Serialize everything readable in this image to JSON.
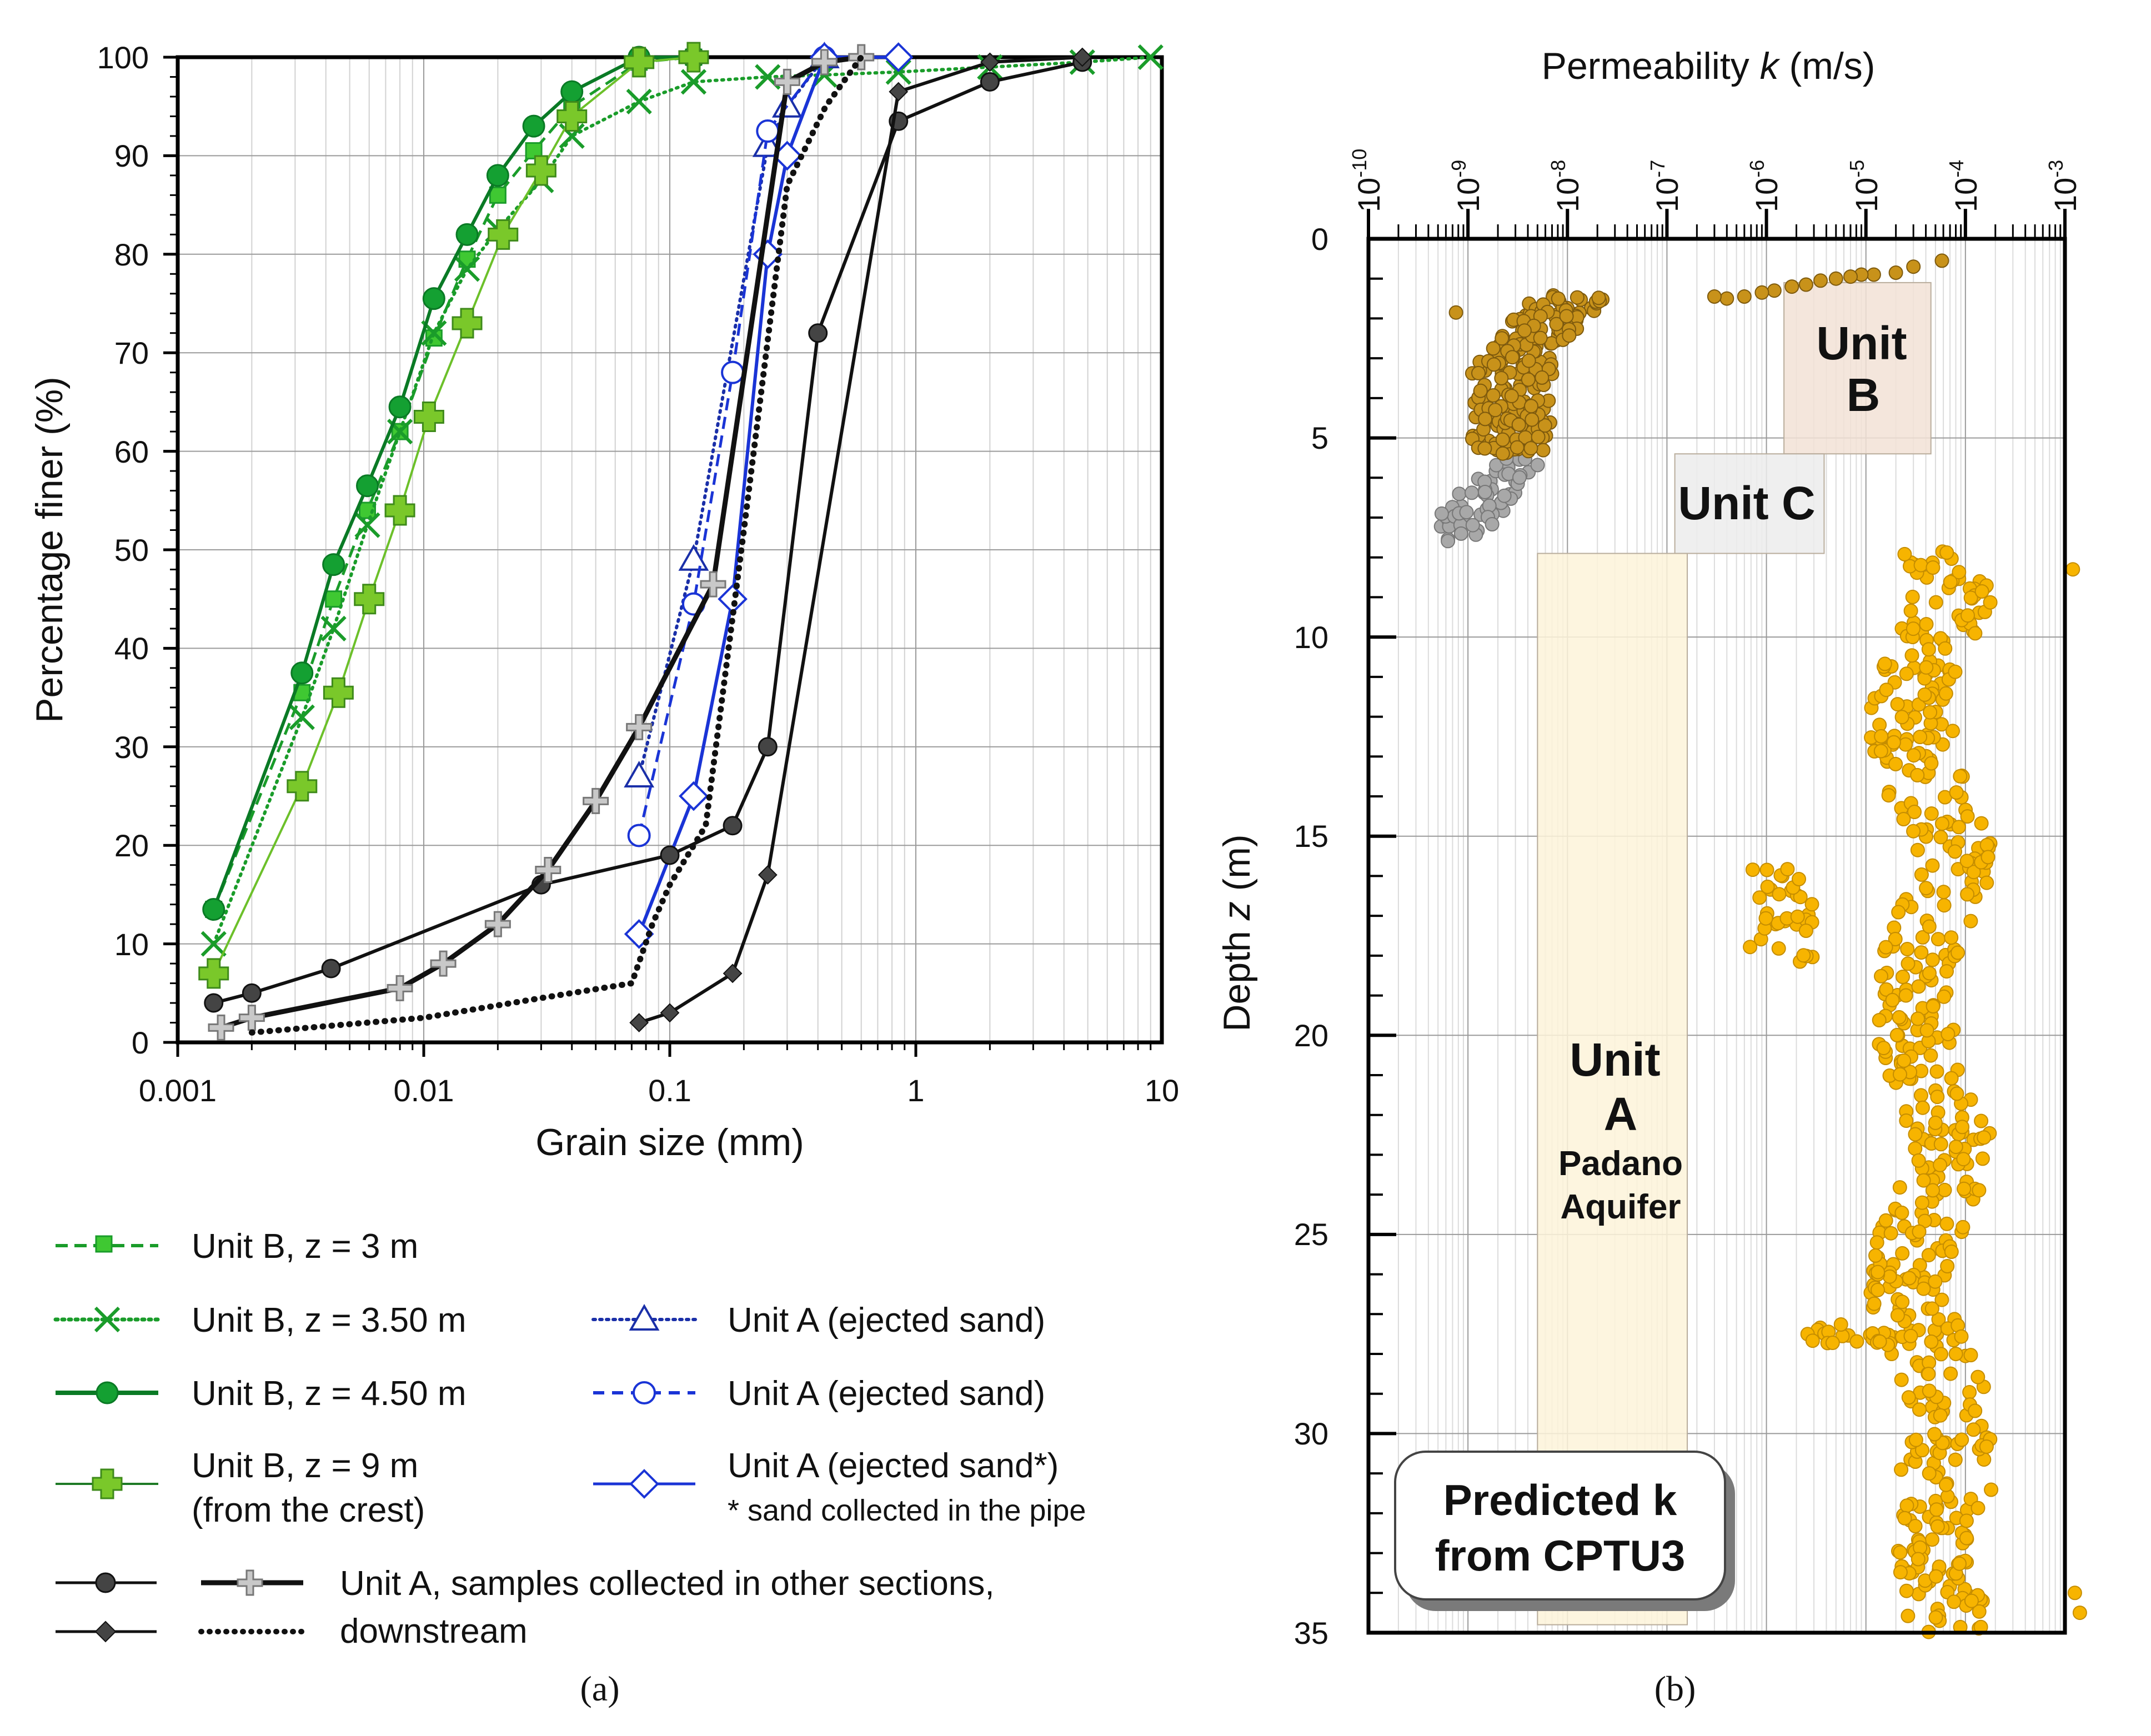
{
  "chart_data": [
    {
      "id": "a",
      "type": "line",
      "panel_label": "(a)",
      "xlabel": "Grain size (mm)",
      "ylabel": "Percentage finer (%)",
      "xscale": "log",
      "xlim": [
        0.001,
        10
      ],
      "ylim": [
        0,
        100
      ],
      "xticks": [
        "0.001",
        "0.01",
        "0.1",
        "1",
        "10"
      ],
      "yticks": [
        "0",
        "10",
        "20",
        "30",
        "40",
        "50",
        "60",
        "70",
        "80",
        "90",
        "100"
      ],
      "grid": true,
      "series": [
        {
          "name": "Unit B, z = 3 m",
          "style": "dashed",
          "marker": "square",
          "color": "#1a9c2a",
          "x": [
            0.0014,
            0.0032,
            0.0043,
            0.0059,
            0.008,
            0.011,
            0.015,
            0.02,
            0.028,
            0.04,
            0.075,
            0.125
          ],
          "y": [
            13.5,
            35.5,
            45,
            54,
            62,
            71.5,
            79.5,
            86,
            90.5,
            95,
            99.5,
            100
          ]
        },
        {
          "name": "Unit B, z = 3.50 m",
          "style": "dotted",
          "marker": "x",
          "color": "#1a9c2a",
          "x": [
            0.0014,
            0.0032,
            0.0043,
            0.0059,
            0.008,
            0.011,
            0.015,
            0.02,
            0.03,
            0.04,
            0.075,
            0.125,
            0.25,
            0.425,
            0.85,
            2,
            4.75,
            9
          ],
          "y": [
            10,
            33,
            42,
            52.5,
            62,
            72,
            78.5,
            82.5,
            87.5,
            92,
            95.5,
            97.5,
            98,
            98.2,
            98.5,
            99,
            99.5,
            100
          ]
        },
        {
          "name": "Unit B, z = 4.50 m",
          "style": "solid",
          "marker": "circle",
          "color": "#0a7a25",
          "x": [
            0.0014,
            0.0032,
            0.0043,
            0.0059,
            0.008,
            0.011,
            0.015,
            0.02,
            0.028,
            0.04,
            0.075,
            0.125
          ],
          "y": [
            13.5,
            37.5,
            48.5,
            56.5,
            64.5,
            75.5,
            82,
            88,
            93,
            96.5,
            100,
            100
          ]
        },
        {
          "name": "Unit B, z = 9 m (from the crest)",
          "style": "thin",
          "marker": "plus",
          "color": "#6cc02a",
          "x": [
            0.0014,
            0.0032,
            0.0045,
            0.006,
            0.008,
            0.0105,
            0.015,
            0.021,
            0.03,
            0.04,
            0.075,
            0.125
          ],
          "y": [
            7,
            26,
            35.5,
            45,
            54,
            63.5,
            73,
            82,
            88.5,
            94,
            99.5,
            100
          ]
        },
        {
          "name": "Unit A (ejected sand)",
          "style": "dotted",
          "marker": "triangle",
          "color": "#1a2fa8",
          "x": [
            0.075,
            0.125,
            0.25,
            0.3,
            0.425
          ],
          "y": [
            27,
            49,
            91,
            95,
            100
          ]
        },
        {
          "name": "Unit A (ejected sand)",
          "style": "dashed",
          "marker": "circle-open",
          "color": "#1a34d6",
          "x": [
            0.075,
            0.125,
            0.18,
            0.25,
            0.425
          ],
          "y": [
            21,
            44.5,
            68,
            92.5,
            100
          ]
        },
        {
          "name": "Unit A (ejected sand*)",
          "style": "solid",
          "marker": "diamond",
          "color": "#1a34d6",
          "x": [
            0.075,
            0.125,
            0.18,
            0.25,
            0.3,
            0.425,
            0.85
          ],
          "y": [
            11,
            25,
            45,
            80,
            90,
            100,
            100
          ]
        },
        {
          "name": "Unit A, samples collected in other sections, downstream (circle)",
          "style": "solid",
          "marker": "circle-dark",
          "color": "#111111",
          "x": [
            0.0014,
            0.002,
            0.0042,
            0.03,
            0.1,
            0.18,
            0.25,
            0.4,
            0.85,
            2,
            4.75
          ],
          "y": [
            4,
            5,
            7.5,
            16,
            19,
            22,
            30,
            72,
            93.5,
            97.5,
            99.5
          ]
        },
        {
          "name": "Unit A, samples collected in other sections, downstream (diamond)",
          "style": "solid",
          "marker": "diamond-dark",
          "color": "#111111",
          "x": [
            0.075,
            0.1,
            0.18,
            0.25,
            0.85,
            2,
            4.75
          ],
          "y": [
            2,
            3,
            7,
            17,
            96.5,
            99.5,
            100
          ]
        },
        {
          "name": "Unit A, samples collected in other sections, downstream (plus)",
          "style": "thick",
          "marker": "plus-gray",
          "color": "#111111",
          "x": [
            0.0015,
            0.002,
            0.008,
            0.012,
            0.02,
            0.032,
            0.05,
            0.075,
            0.15,
            0.3,
            0.425,
            0.6
          ],
          "y": [
            1.5,
            2.5,
            5.5,
            8,
            12,
            17.5,
            24.5,
            32,
            46.5,
            97.5,
            99.5,
            100
          ]
        },
        {
          "name": "Unit A, samples collected in other sections, downstream (dotted)",
          "style": "heavy-dotted",
          "marker": "none",
          "color": "#111111",
          "x": [
            0.002,
            0.01,
            0.03,
            0.07,
            0.085,
            0.1,
            0.14,
            0.2,
            0.3,
            0.43,
            0.6
          ],
          "y": [
            1,
            2.5,
            4.5,
            6,
            12,
            16,
            22,
            52,
            87,
            95,
            100
          ]
        }
      ],
      "legend": {
        "left": [
          {
            "label": "Unit B, z = 3 m"
          },
          {
            "label": "Unit B, z = 3.50 m"
          },
          {
            "label": "Unit B, z = 4.50 m"
          },
          {
            "label": "Unit B, z = 9 m",
            "label2": "(from the crest)"
          }
        ],
        "right": [
          {
            "label": "Unit A (ejected sand)"
          },
          {
            "label": "Unit A (ejected sand)"
          },
          {
            "label": "Unit A (ejected sand*)",
            "note": "* sand collected in the pipe"
          }
        ],
        "bottom": {
          "line1": "Unit A, samples collected in other sections,",
          "line2": "downstream"
        }
      }
    },
    {
      "id": "b",
      "type": "scatter",
      "panel_label": "(b)",
      "title": "Permeability k (m/s)",
      "title_pre": "Permeability ",
      "title_var": "k",
      "title_post": " (m/s)",
      "ylabel_pre": "Depth ",
      "ylabel_var": "z",
      "ylabel_post": " (m)",
      "xscale": "log",
      "xlim": [
        1e-10,
        0.001
      ],
      "ylim": [
        0,
        35
      ],
      "xtick_bases": [
        "10",
        "10",
        "10",
        "10",
        "10",
        "10",
        "10",
        "10"
      ],
      "xtick_exps": [
        "-10",
        "-9",
        "-8",
        "-7",
        "-6",
        "-5",
        "-4",
        "-3"
      ],
      "yticks": [
        "0",
        "5",
        "10",
        "15",
        "20",
        "25",
        "30",
        "35"
      ],
      "grid": true,
      "colors": {
        "unit_b": "#c8921a",
        "unit_c": "#a8a8a8",
        "unit_a": "#f7b400"
      },
      "units": [
        {
          "label": "Unit",
          "label2": "B",
          "xrange": [
            1.5e-06,
            4.5e-05
          ],
          "zrange": [
            1.1,
            5.4
          ],
          "fill": "#f2e2d6"
        },
        {
          "label": "Unit C",
          "xrange": [
            1.2e-07,
            3.8e-06
          ],
          "zrange": [
            5.4,
            7.9
          ],
          "fill": "#ececec"
        },
        {
          "label": "Unit",
          "label2": "A",
          "sub1": "Padano",
          "sub2": "Aquifer",
          "xrange": [
            5e-09,
            1.6e-07
          ],
          "zrange": [
            7.9,
            34.8
          ],
          "fill": "#fdf3d9"
        }
      ],
      "prediction_box": {
        "line1": "Predicted k",
        "line2": "from CPTU3"
      },
      "point_groups": {
        "unit_b_trend": [
          [
            5.8,
            0.55
          ],
          [
            3,
            0.7
          ],
          [
            2,
            0.85
          ],
          [
            1.2,
            0.9
          ],
          [
            0.9,
            0.9
          ],
          [
            0.7,
            0.95
          ],
          [
            0.5,
            1.0
          ],
          [
            0.35,
            1.05
          ],
          [
            0.25,
            1.15
          ],
          [
            0.18,
            1.2
          ],
          [
            0.12,
            1.3
          ],
          [
            0.09,
            1.35
          ],
          [
            0.06,
            1.45
          ],
          [
            0.04,
            1.5
          ],
          [
            0.03,
            1.45
          ]
        ],
        "unit_b_cluster": {
          "logk_range": [
            -9.0,
            -7.6
          ],
          "z_range": [
            1.4,
            5.4
          ],
          "count": 200
        },
        "unit_c_cluster": {
          "logk_range": [
            -9.6,
            -8.2
          ],
          "z_range": [
            5.5,
            7.6
          ],
          "count": 60
        },
        "unit_a_main": {
          "logk_range": [
            -5.0,
            -3.8
          ],
          "z_range": [
            7.8,
            35
          ],
          "count": 560
        },
        "unit_a_low": {
          "logk_range": [
            -6.2,
            -5.5
          ],
          "z_range": [
            15.8,
            18.2
          ],
          "count": 35
        }
      }
    }
  ]
}
